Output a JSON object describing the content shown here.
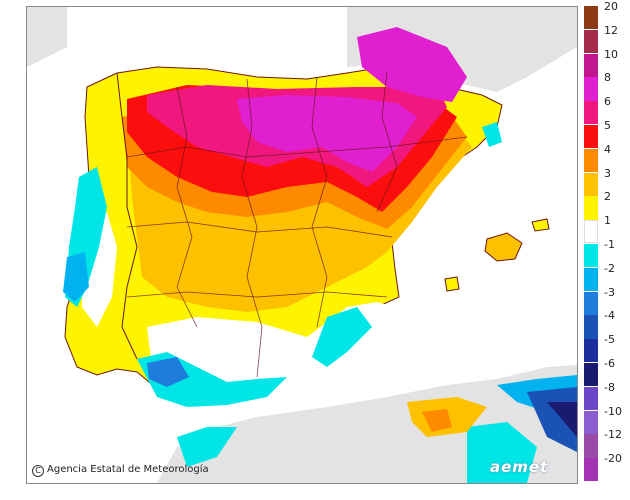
{
  "credit": "Agencia Estatal de Meteorología",
  "brand": "aemet",
  "legend": {
    "entries": [
      {
        "label": "20",
        "color": "#8b3a13"
      },
      {
        "label": "12",
        "color": "#a62b4b"
      },
      {
        "label": "10",
        "color": "#c2188f"
      },
      {
        "label": "8",
        "color": "#e01fd1"
      },
      {
        "label": "6",
        "color": "#f0177e"
      },
      {
        "label": "5",
        "color": "#fb0e0e"
      },
      {
        "label": "4",
        "color": "#fe8a00"
      },
      {
        "label": "3",
        "color": "#fec100"
      },
      {
        "label": "2",
        "color": "#fef300"
      },
      {
        "label": "1",
        "color": "#ffffff"
      },
      {
        "label": "-1",
        "color": "#00e6e6"
      },
      {
        "label": "-2",
        "color": "#00b2f0"
      },
      {
        "label": "-3",
        "color": "#1e7cdc"
      },
      {
        "label": "-4",
        "color": "#1a52b6"
      },
      {
        "label": "-5",
        "color": "#1a2f9b"
      },
      {
        "label": "-6",
        "color": "#1a1a6e"
      },
      {
        "label": "-8",
        "color": "#6b46c6"
      },
      {
        "label": "-10",
        "color": "#8a5dd0"
      },
      {
        "label": "-12",
        "color": "#9a4aa8"
      },
      {
        "label": "-20",
        "color": "#a531b4"
      }
    ]
  },
  "colors": {
    "sea": "#ffffff",
    "outside": "#e3e3e3",
    "border": "#6b1515"
  }
}
